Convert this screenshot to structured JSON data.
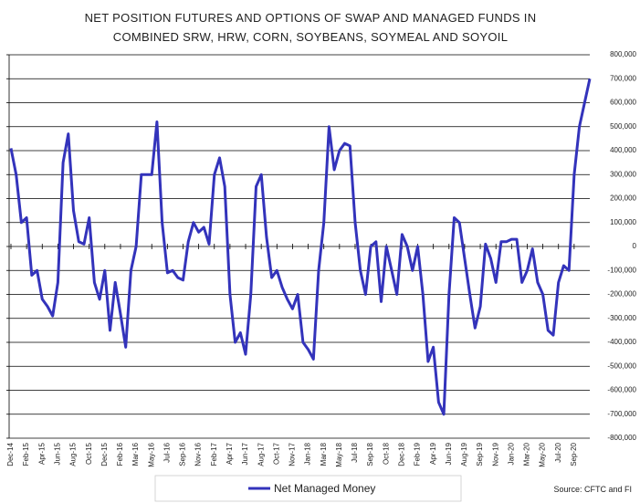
{
  "chart_data": {
    "type": "line",
    "title": [
      "NET POSITION FUTURES AND OPTIONS OF SWAP AND MANAGED FUNDS IN",
      "COMBINED SRW, HRW, CORN, SOYBEANS, SOYMEAL AND SOYOIL"
    ],
    "categories": [
      "Dec-14",
      null,
      null,
      "Feb-15",
      null,
      null,
      "Apr-15",
      null,
      null,
      "Jun-15",
      null,
      null,
      "Aug-15",
      null,
      null,
      "Oct-15",
      null,
      null,
      "Dec-15",
      null,
      null,
      "Feb-16",
      null,
      null,
      "Mar-16",
      null,
      null,
      "May-16",
      null,
      null,
      "Jul-16",
      null,
      null,
      "Sep-16",
      null,
      null,
      "Nov-16",
      null,
      null,
      "Feb-17",
      null,
      null,
      "Apr-17",
      null,
      null,
      "Jun-17",
      null,
      null,
      "Aug-17",
      null,
      null,
      "Oct-17",
      null,
      null,
      "Nov-17",
      null,
      null,
      "Jan-18",
      null,
      null,
      "Mar-18",
      null,
      null,
      "May-18",
      null,
      null,
      "Jul-18",
      null,
      null,
      "Sep-18",
      null,
      null,
      "Oct-18",
      null,
      null,
      "Dec-18",
      null,
      null,
      "Feb-19",
      null,
      null,
      "Apr-19",
      null,
      null,
      "Jun-19",
      null,
      null,
      "Aug-19",
      null,
      null,
      "Sep-19",
      null,
      null,
      "Nov-19",
      null,
      null,
      "Jan-20",
      null,
      null,
      "Mar-20",
      null,
      null,
      "May-20",
      null,
      null,
      "Jul-20",
      null,
      null,
      "Sep-20",
      null,
      null,
      null
    ],
    "series": [
      {
        "name": "Net Managed Money",
        "color": "#3333bb",
        "values": [
          410000,
          300000,
          100000,
          120000,
          -120000,
          -100000,
          -220000,
          -250000,
          -290000,
          -150000,
          350000,
          470000,
          150000,
          20000,
          10000,
          120000,
          -150000,
          -220000,
          -100000,
          -350000,
          -150000,
          -280000,
          -420000,
          -100000,
          0,
          300000,
          300000,
          300000,
          520000,
          100000,
          -110000,
          -100000,
          -130000,
          -140000,
          20000,
          100000,
          60000,
          80000,
          10000,
          300000,
          370000,
          250000,
          -200000,
          -400000,
          -360000,
          -450000,
          -200000,
          250000,
          300000,
          40000,
          -130000,
          -100000,
          -170000,
          -220000,
          -260000,
          -200000,
          -400000,
          -430000,
          -470000,
          -100000,
          100000,
          500000,
          320000,
          400000,
          430000,
          420000,
          100000,
          -100000,
          -200000,
          0,
          20000,
          -230000,
          0,
          -100000,
          -200000,
          50000,
          0,
          -100000,
          0,
          -200000,
          -480000,
          -420000,
          -650000,
          -700000,
          -200000,
          120000,
          100000,
          -50000,
          -200000,
          -340000,
          -250000,
          10000,
          -50000,
          -150000,
          20000,
          20000,
          30000,
          30000,
          -150000,
          -100000,
          -10000,
          -150000,
          -200000,
          -350000,
          -370000,
          -150000,
          -80000,
          -100000,
          300000,
          500000,
          600000,
          700000
        ]
      }
    ],
    "ylim": [
      -800000,
      800000
    ],
    "yticks": [
      {
        "value": 800000,
        "label": "800,000"
      },
      {
        "value": 700000,
        "label": "700,000"
      },
      {
        "value": 600000,
        "label": "600,000"
      },
      {
        "value": 500000,
        "label": "500,000"
      },
      {
        "value": 400000,
        "label": "400,000"
      },
      {
        "value": 300000,
        "label": "300,000"
      },
      {
        "value": 200000,
        "label": "200,000"
      },
      {
        "value": 100000,
        "label": "100,000"
      },
      0,
      {
        "value": -100000,
        "label": "-100,000"
      },
      {
        "value": -200000,
        "label": "-200,000"
      },
      {
        "value": -300000,
        "label": "-300,000"
      },
      {
        "value": -400000,
        "label": "-400,000"
      },
      {
        "value": -500000,
        "label": "-500,000"
      },
      {
        "value": -600000,
        "label": "-600,000"
      },
      {
        "value": -700000,
        "label": "-700,000"
      },
      {
        "value": -800000,
        "label": "-800,000"
      }
    ],
    "grid": true,
    "legend": "bottom",
    "source": "Source: CFTC and FI"
  }
}
